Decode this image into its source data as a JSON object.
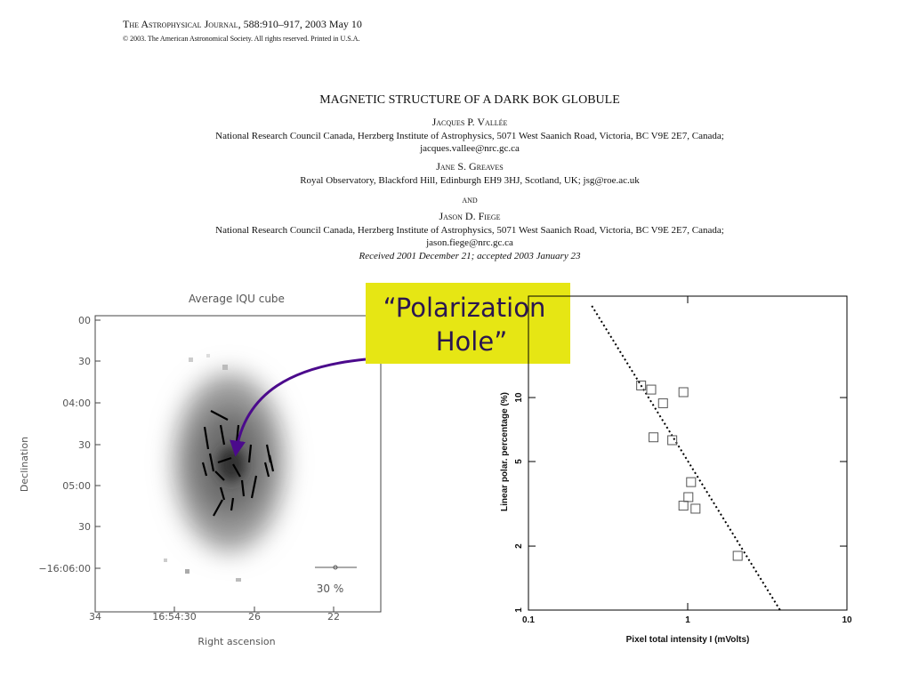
{
  "header": {
    "journal": "The Astrophysical Journal",
    "citation": ", 588:910–917, 2003 May 10",
    "copyright": "© 2003. The American Astronomical Society. All rights reserved. Printed in U.S.A.",
    "title": "MAGNETIC STRUCTURE OF A DARK BOK GLOBULE",
    "authors": [
      {
        "name": "Jacques P. Vallée",
        "affiliation": "National Research Council Canada, Herzberg Institute of Astrophysics, 5071 West Saanich Road, Victoria, BC V9E 2E7, Canada;",
        "email": "jacques.vallee@nrc.gc.ca"
      },
      {
        "name": "Jane S. Greaves",
        "affiliation": "Royal Observatory, Blackford Hill, Edinburgh EH9 3HJ, Scotland, UK; jsg@roe.ac.uk"
      },
      {
        "name": "Jason D. Fiege",
        "affiliation": "National Research Council Canada, Herzberg Institute of Astrophysics, 5071 West Saanich Road, Victoria, BC V9E 2E7, Canada;",
        "email": "jason.fiege@nrc.gc.ca"
      }
    ],
    "and": "and",
    "received": "Received 2001 December 21; accepted 2003 January 23"
  },
  "left_figure": {
    "title": "Average IQU cube",
    "xlabel": "Right ascension",
    "ylabel": "Declination",
    "yticks": [
      "00",
      "30",
      "04:00",
      "30",
      "05:00",
      "30",
      "−16:06:00"
    ],
    "xticks": [
      "34",
      "16:54:30",
      "26",
      "22"
    ],
    "scale_label": "30 %"
  },
  "callout": {
    "lines": [
      "“Polarization",
      "Hole”"
    ]
  },
  "chart_data": {
    "type": "scatter",
    "xlabel": "Pixel total intensity I (mVolts)",
    "ylabel": "Linear polar. percentage (%)",
    "x": [
      0.51,
      0.59,
      0.7,
      0.94,
      0.61,
      0.8,
      1.05,
      1.01,
      1.12,
      0.94,
      2.06
    ],
    "values": [
      11.4,
      10.9,
      9.4,
      10.6,
      6.5,
      6.3,
      4.0,
      3.4,
      3.0,
      3.1,
      1.8
    ],
    "fit_line": {
      "x": [
        0.25,
        3.8
      ],
      "y": [
        27,
        1
      ]
    },
    "xlim": [
      0.1,
      10
    ],
    "ylim": [
      1,
      30
    ],
    "xticks": [
      0.1,
      1,
      10
    ],
    "yticks": [
      1,
      2,
      5,
      10
    ],
    "log_x": true,
    "log_y": true,
    "color": "#555555"
  }
}
